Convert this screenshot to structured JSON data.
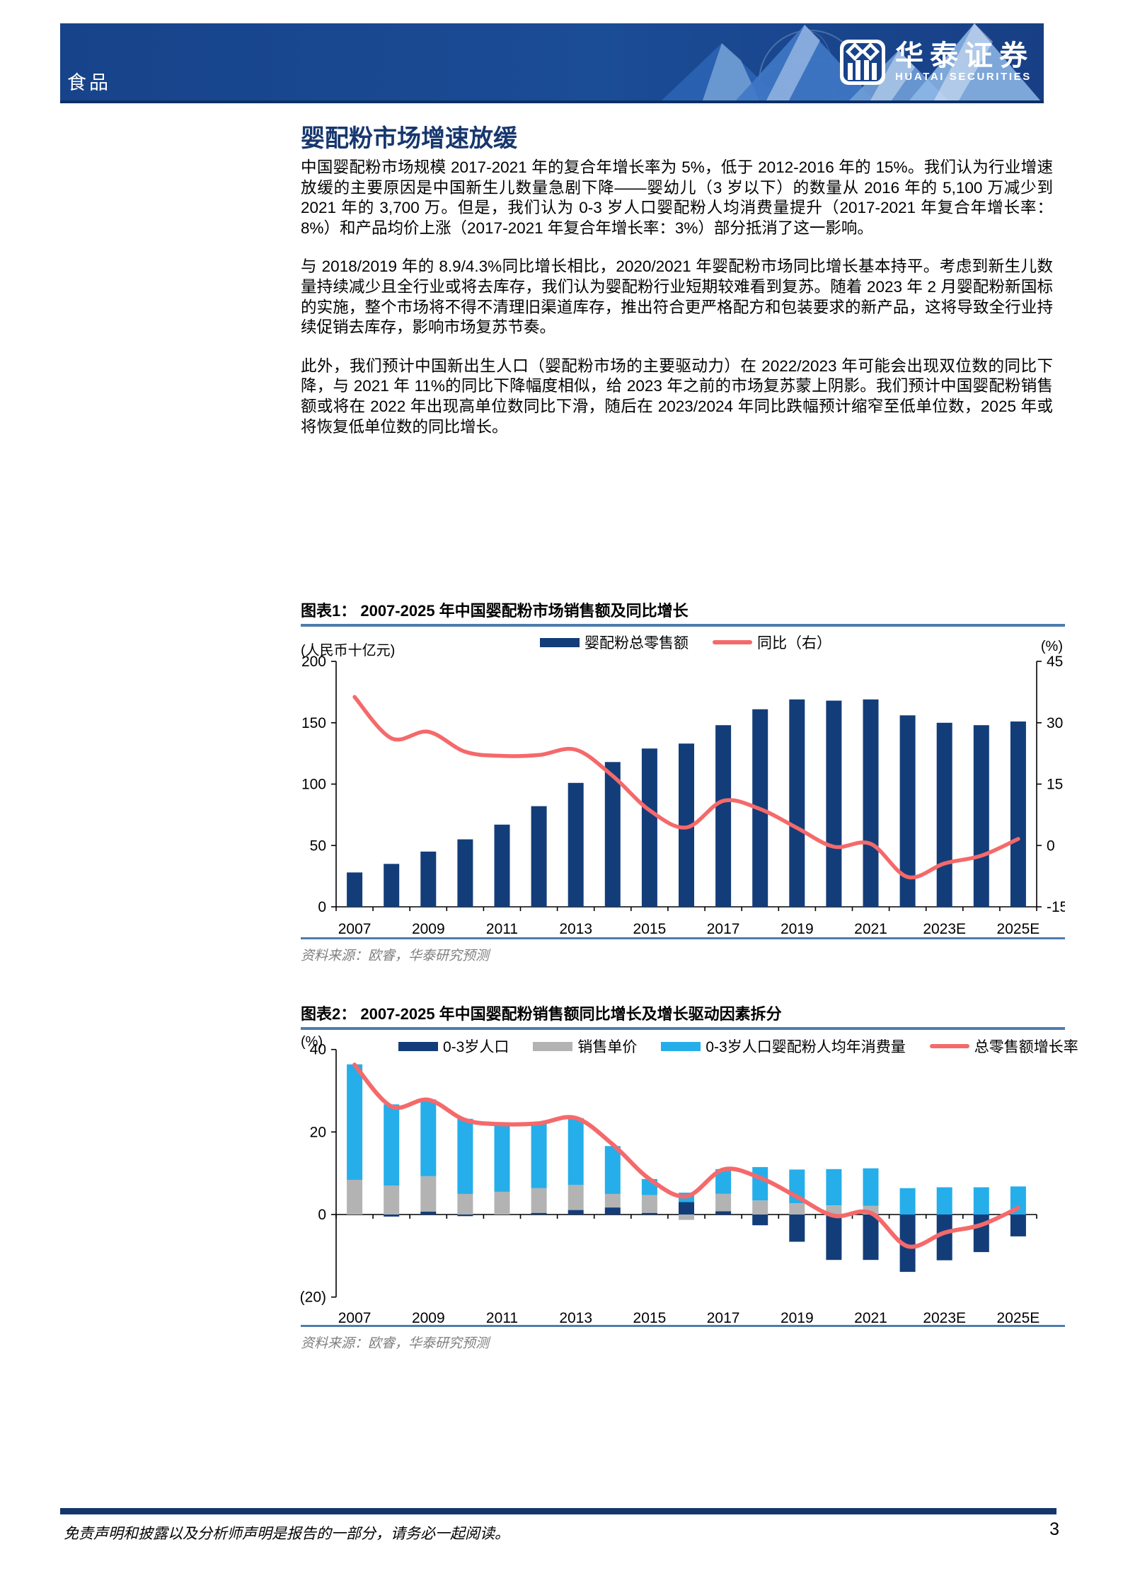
{
  "header": {
    "category": "食品",
    "brand_cn": "华泰证券",
    "brand_en": "HUATAI SECURITIES"
  },
  "article": {
    "title": "婴配粉市场增速放缓",
    "paragraphs": [
      "中国婴配粉市场规模 2017-2021 年的复合年增长率为 5%，低于 2012-2016 年的 15%。我们认为行业增速放缓的主要原因是中国新生儿数量急剧下降——婴幼儿（3 岁以下）的数量从 2016 年的 5,100 万减少到 2021 年的 3,700 万。但是，我们认为 0-3 岁人口婴配粉人均消费量提升（2017-2021 年复合年增长率：8%）和产品均价上涨（2017-2021 年复合年增长率：3%）部分抵消了这一影响。",
      "与 2018/2019 年的 8.9/4.3%同比增长相比，2020/2021 年婴配粉市场同比增长基本持平。考虑到新生儿数量持续减少且全行业或将去库存，我们认为婴配粉行业短期较难看到复苏。随着 2023 年 2 月婴配粉新国标的实施，整个市场将不得不清理旧渠道库存，推出符合更严格配方和包装要求的新产品，这将导致全行业持续促销去库存，影响市场复苏节奏。",
      "此外，我们预计中国新出生人口（婴配粉市场的主要驱动力）在 2022/2023 年可能会出现双位数的同比下降，与 2021 年 11%的同比下降幅度相似，给 2023 年之前的市场复苏蒙上阴影。我们预计中国婴配粉销售额或将在 2022 年出现高单位数同比下滑，随后在 2023/2024 年同比跌幅预计缩窄至低单位数，2025 年或将恢复低单位数的同比增长。"
    ]
  },
  "figures": [
    {
      "caption": "图表1：  2007-2025 年中国婴配粉市场销售额及同比增长",
      "unit_left": "(人民币十亿元)",
      "unit_right": "(%)",
      "source": "资料来源：欧睿，华泰研究预测"
    },
    {
      "caption": "图表2：  2007-2025 年中国婴配粉销售额同比增长及增长驱动因素拆分",
      "unit_left": "(%)",
      "source": "资料来源：欧睿，华泰研究预测"
    }
  ],
  "footer": {
    "disclaimer": "免责声明和披露以及分析师声明是报告的一部分，请务必一起阅读。",
    "page_number": "3"
  },
  "chart_data": [
    {
      "type": "bar",
      "title": "2007-2025 年中国婴配粉市场销售额及同比增长",
      "categories": [
        "2007",
        "2008",
        "2009",
        "2010",
        "2011",
        "2012",
        "2013",
        "2014",
        "2015",
        "2016",
        "2017",
        "2018",
        "2019",
        "2020",
        "2021",
        "2022",
        "2023E",
        "2024E",
        "2025E"
      ],
      "x_tick_labels": [
        "2007",
        "2009",
        "2011",
        "2013",
        "2015",
        "2017",
        "2019",
        "2021",
        "2023E",
        "2025E"
      ],
      "series": [
        {
          "name": "婴配粉总零售额",
          "type": "bar",
          "axis": "left",
          "color": "#133d79",
          "values": [
            28,
            35,
            45,
            55,
            67,
            82,
            101,
            118,
            129,
            133,
            148,
            161,
            169,
            168,
            169,
            156,
            150,
            148,
            151
          ]
        },
        {
          "name": "同比（右）",
          "type": "line",
          "axis": "right",
          "color": "#f5696a",
          "values": [
            36.3,
            26.2,
            27.8,
            22.9,
            21.9,
            22.1,
            23.4,
            17.0,
            8.6,
            4.4,
            10.9,
            8.9,
            4.3,
            -0.3,
            0.4,
            -7.7,
            -4.4,
            -2.5,
            1.6
          ]
        }
      ],
      "left_axis": {
        "label": "(人民币十亿元)",
        "ticks": [
          0,
          50,
          100,
          150,
          200
        ],
        "range": [
          0,
          200
        ]
      },
      "right_axis": {
        "label": "(%)",
        "ticks": [
          -15,
          0,
          15,
          30,
          45
        ],
        "range": [
          -15,
          45
        ]
      },
      "grid": false,
      "legend_position": "top"
    },
    {
      "type": "bar",
      "title": "2007-2025 年中国婴配粉销售额同比增长及增长驱动因素拆分",
      "stacked": true,
      "categories": [
        "2007",
        "2008",
        "2009",
        "2010",
        "2011",
        "2012",
        "2013",
        "2014",
        "2015",
        "2016",
        "2017",
        "2018",
        "2019",
        "2020",
        "2021",
        "2022",
        "2023E",
        "2024E",
        "2025E"
      ],
      "x_tick_labels": [
        "2007",
        "2009",
        "2011",
        "2013",
        "2015",
        "2017",
        "2019",
        "2021",
        "2023E",
        "2025E"
      ],
      "series": [
        {
          "name": "0-3岁人口",
          "type": "bar",
          "color": "#133d79",
          "values": [
            0,
            -0.5,
            0.7,
            -0.4,
            0,
            0.4,
            1.1,
            1.7,
            0.4,
            3.0,
            0.8,
            -2.6,
            -6.6,
            -11.0,
            -11.0,
            -13.9,
            -11.1,
            -9.1,
            -5.3
          ]
        },
        {
          "name": "销售单价",
          "type": "bar",
          "color": "#b3b3b3",
          "values": [
            8.4,
            7.0,
            8.6,
            5.0,
            5.5,
            6.0,
            6.1,
            3.3,
            4.3,
            -1.3,
            4.2,
            3.4,
            2.7,
            2.2,
            2.1,
            0,
            0,
            0,
            0
          ]
        },
        {
          "name": "0-3岁人口婴配粉人均年消费量",
          "type": "bar",
          "color": "#25aeea",
          "values": [
            28.0,
            19.7,
            18.6,
            18.2,
            16.3,
            15.7,
            16.2,
            11.6,
            3.9,
            2.3,
            6.0,
            8.1,
            8.2,
            8.8,
            9.1,
            6.4,
            6.6,
            6.6,
            6.8
          ]
        },
        {
          "name": "总零售额增长率",
          "type": "line",
          "color": "#f5696a",
          "values": [
            36.3,
            26.2,
            27.8,
            22.9,
            21.9,
            22.1,
            23.4,
            17.0,
            8.6,
            4.4,
            10.9,
            8.9,
            4.3,
            -0.3,
            0.4,
            -7.7,
            -4.4,
            -2.5,
            1.6
          ]
        }
      ],
      "left_axis": {
        "label": "(%)",
        "ticks": [
          -20,
          0,
          20,
          40
        ],
        "tick_labels": [
          "(20)",
          "0",
          "20",
          "40"
        ],
        "range": [
          -20,
          40
        ]
      },
      "grid": false,
      "legend_position": "top"
    }
  ]
}
